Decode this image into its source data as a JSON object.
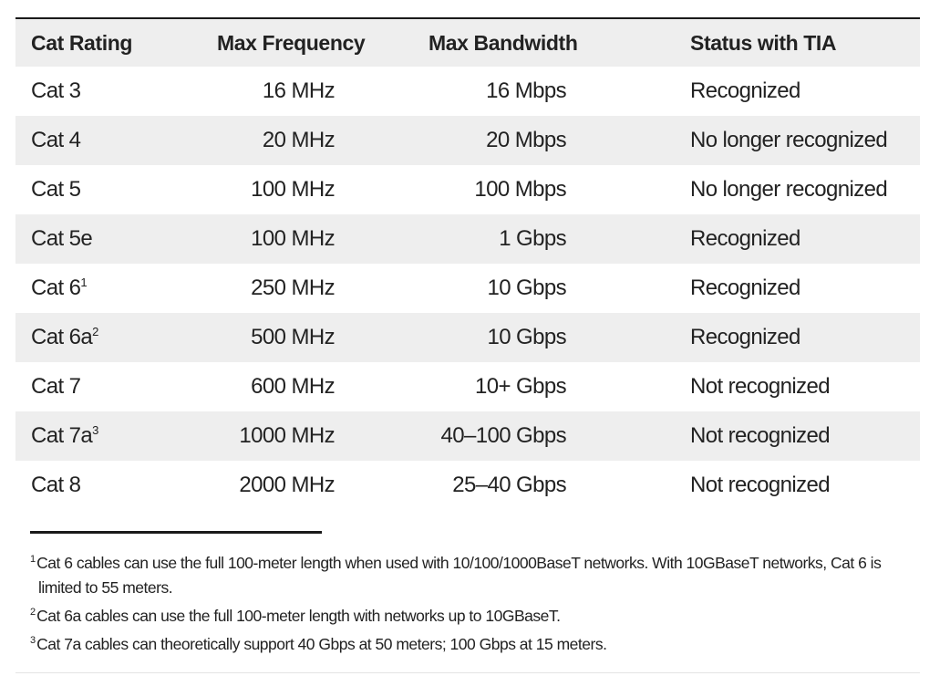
{
  "table": {
    "headers": [
      "Cat Rating",
      "Max Frequency",
      "Max Bandwidth",
      "Status with TIA"
    ],
    "rows": [
      {
        "rating": "Cat 3",
        "note": "",
        "frequency": "16 MHz",
        "bandwidth": "16 Mbps",
        "status": "Recognized"
      },
      {
        "rating": "Cat 4",
        "note": "",
        "frequency": "20 MHz",
        "bandwidth": "20 Mbps",
        "status": "No longer recognized"
      },
      {
        "rating": "Cat 5",
        "note": "",
        "frequency": "100 MHz",
        "bandwidth": "100 Mbps",
        "status": "No longer recognized"
      },
      {
        "rating": "Cat 5e",
        "note": "",
        "frequency": "100 MHz",
        "bandwidth": "1 Gbps",
        "status": "Recognized"
      },
      {
        "rating": "Cat 6",
        "note": "1",
        "frequency": "250 MHz",
        "bandwidth": "10 Gbps",
        "status": "Recognized"
      },
      {
        "rating": "Cat 6a",
        "note": "2",
        "frequency": "500 MHz",
        "bandwidth": "10 Gbps",
        "status": "Recognized"
      },
      {
        "rating": "Cat 7",
        "note": "",
        "frequency": "600 MHz",
        "bandwidth": "10+ Gbps",
        "status": "Not recognized"
      },
      {
        "rating": "Cat 7a",
        "note": "3",
        "frequency": "1000 MHz",
        "bandwidth": "40–100 Gbps",
        "status": "Not recognized"
      },
      {
        "rating": "Cat 8",
        "note": "",
        "frequency": "2000 MHz",
        "bandwidth": "25–40 Gbps",
        "status": "Not recognized"
      }
    ]
  },
  "footnotes": [
    {
      "mark": "1",
      "text": "Cat 6 cables can use the full 100-meter length when used with 10/100/1000BaseT networks. With 10GBaseT networks, Cat 6 is",
      "continuation": "limited to 55 meters."
    },
    {
      "mark": "2",
      "text": "Cat 6a cables can use the full 100-meter length with networks up to 10GBaseT.",
      "continuation": ""
    },
    {
      "mark": "3",
      "text": "Cat 7a cables can theoretically support 40 Gbps at 50 meters; 100 Gbps at 15 meters.",
      "continuation": ""
    }
  ],
  "colors": {
    "shaded_row": "#eeeeee",
    "rule": "#1a1a1a",
    "text": "#222222"
  }
}
